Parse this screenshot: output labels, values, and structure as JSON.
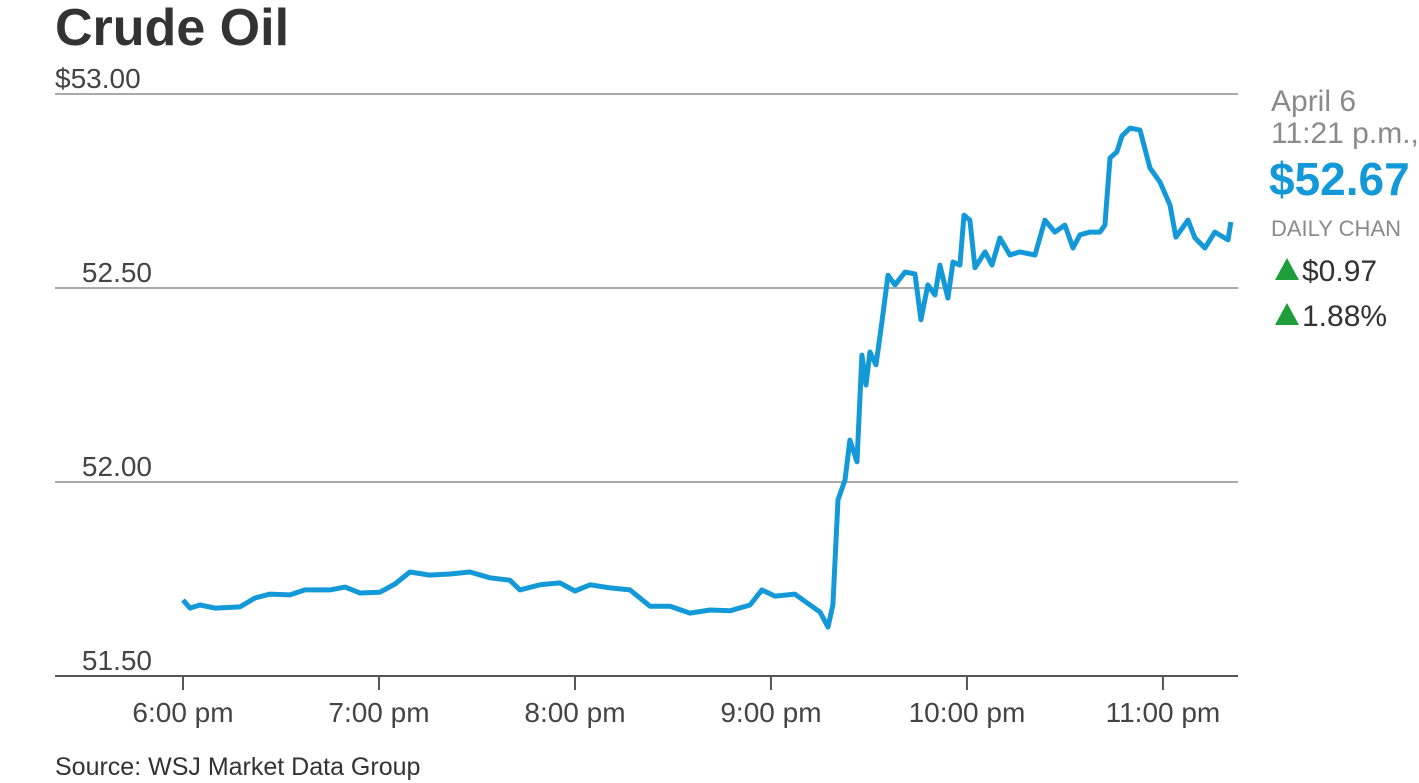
{
  "chart_data": {
    "type": "line",
    "title": "Crude Oil",
    "color": "#1499d8",
    "grid": true,
    "x": [
      18.0,
      18.036,
      18.087,
      18.163,
      18.291,
      18.367,
      18.444,
      18.546,
      18.622,
      18.75,
      18.827,
      18.903,
      19.005,
      19.082,
      19.158,
      19.26,
      19.362,
      19.464,
      19.566,
      19.668,
      19.719,
      19.821,
      19.923,
      20.0,
      20.077,
      20.179,
      20.281,
      20.383,
      20.485,
      20.587,
      20.689,
      20.791,
      20.893,
      20.954,
      21.02,
      21.122,
      21.199,
      21.25,
      21.291,
      21.316,
      21.342,
      21.378,
      21.403,
      21.439,
      21.464,
      21.485,
      21.505,
      21.536,
      21.566,
      21.597,
      21.633,
      21.684,
      21.735,
      21.765,
      21.801,
      21.837,
      21.862,
      21.903,
      21.929,
      21.964,
      21.985,
      22.015,
      22.041,
      22.092,
      22.128,
      22.168,
      22.219,
      22.27,
      22.347,
      22.398,
      22.449,
      22.5,
      22.541,
      22.577,
      22.628,
      22.679,
      22.704,
      22.73,
      22.765,
      22.791,
      22.832,
      22.883,
      22.934,
      22.985,
      23.036,
      23.066,
      23.128,
      23.163,
      23.214,
      23.265,
      23.332,
      23.347
    ],
    "values": [
      51.696,
      51.675,
      51.683,
      51.675,
      51.678,
      51.701,
      51.711,
      51.709,
      51.722,
      51.722,
      51.729,
      51.714,
      51.716,
      51.737,
      51.768,
      51.76,
      51.763,
      51.768,
      51.753,
      51.747,
      51.722,
      51.735,
      51.74,
      51.719,
      51.735,
      51.727,
      51.722,
      51.68,
      51.68,
      51.662,
      51.67,
      51.668,
      51.683,
      51.722,
      51.706,
      51.711,
      51.683,
      51.665,
      51.626,
      51.683,
      51.954,
      52.005,
      52.108,
      52.052,
      52.327,
      52.25,
      52.335,
      52.302,
      52.412,
      52.533,
      52.508,
      52.541,
      52.536,
      52.418,
      52.508,
      52.482,
      52.559,
      52.474,
      52.567,
      52.559,
      52.688,
      52.675,
      52.552,
      52.593,
      52.559,
      52.629,
      52.585,
      52.593,
      52.585,
      52.675,
      52.644,
      52.662,
      52.603,
      52.637,
      52.644,
      52.644,
      52.662,
      52.835,
      52.851,
      52.892,
      52.912,
      52.907,
      52.809,
      52.773,
      52.714,
      52.631,
      52.675,
      52.629,
      52.603,
      52.644,
      52.624,
      52.67
    ],
    "xlim": [
      17.347,
      23.383
    ],
    "xticks": [
      {
        "value": 18,
        "label": "6:00 pm"
      },
      {
        "value": 19,
        "label": "7:00 pm"
      },
      {
        "value": 20,
        "label": "8:00 pm"
      },
      {
        "value": 21,
        "label": "9:00 pm"
      },
      {
        "value": 22,
        "label": "10:00 pm"
      },
      {
        "value": 23,
        "label": "11:00 pm"
      }
    ],
    "ylim": [
      51.5,
      53
    ],
    "yticks": [
      {
        "value": 51.5,
        "label": "51.50"
      },
      {
        "value": 52,
        "label": "52.00"
      },
      {
        "value": 52.5,
        "label": "52.50"
      },
      {
        "value": 53,
        "label": "$53.00"
      }
    ],
    "source": "Source: WSJ Market Data Group"
  },
  "quote": {
    "date": "April 6",
    "time": "11:21 p.m.,",
    "price": "$52.67",
    "change_label": "DAILY CHAN",
    "change": "$0.97",
    "change_pct": "1.88%"
  }
}
